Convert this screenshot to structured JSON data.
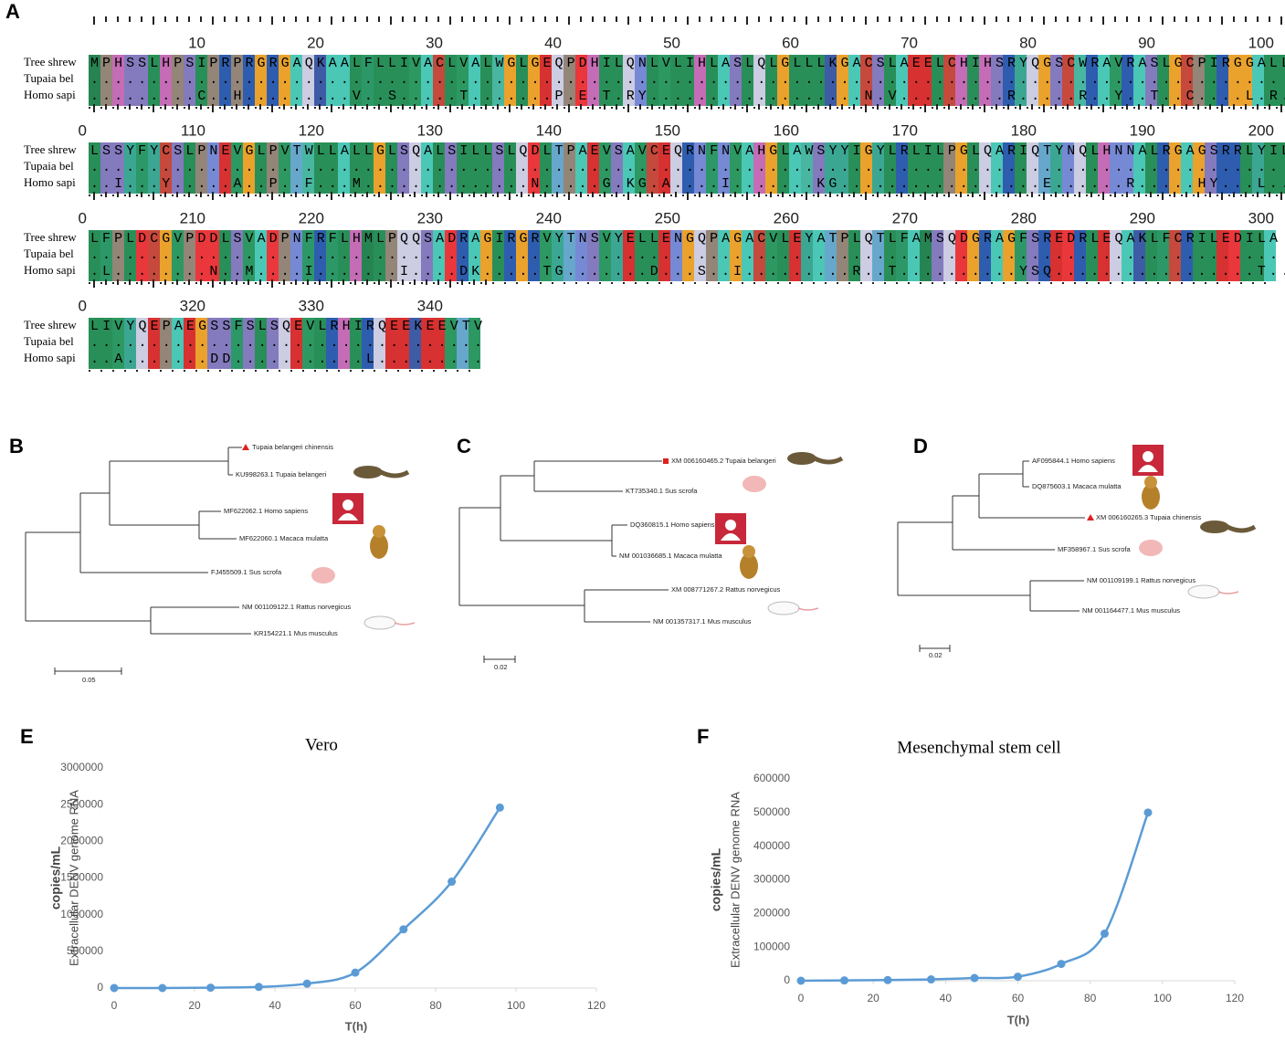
{
  "panels": {
    "A": {
      "label": "A",
      "blocks": [
        {
          "ruler": [
            "10",
            "20",
            "30",
            "40",
            "50",
            "60",
            "70",
            "80",
            "90",
            "100"
          ],
          "rows": [
            {
              "name": "Tree shrew",
              "seq": "MPHSSLHPSIPRPRGRGAQKAALFLLIVACLVALWGLGEQPDHILQNLVLIHLASLQLGLLLKGACSLAEELCHIHSRYQGSCWRAVRASLGCPIRGGALLL"
            },
            {
              "name": "Tupaia bel",
              "seq": "...................................................................................................."
            },
            {
              "name": "Homo sapi",
              "seq": ".........C..H.........V..S.....T.......P.E.T.RY..................N.V.........R.....R..Y..T..C....L.R..."
            }
          ]
        },
        {
          "ruler": [
            "0",
            "110",
            "120",
            "130",
            "140",
            "150",
            "160",
            "170",
            "180",
            "190",
            "200"
          ],
          "rows": [
            {
              "name": "Tree shrew",
              "seq": "LSSYFYCSLPNEVGLPVTWLLALLGLSQALSILLSLQDLTPAEVSAVCEQRNFNVAHGLAWSYYIGYLRLILPGLQARIQTYNQLHNNALRGAGSRRLYIL"
            },
            {
              "name": "Tupaia bel",
              "seq": "...................................................................................................."
            },
            {
              "name": "Homo sapi",
              "seq": "..I...Y.....A..P..F...M..............N.....G.KG.A....I.......KG.................E......R.....HY...L....V.Q."
            }
          ]
        },
        {
          "ruler": [
            "0",
            "210",
            "220",
            "230",
            "240",
            "250",
            "260",
            "270",
            "280",
            "290",
            "300"
          ],
          "rows": [
            {
              "name": "Tree shrew",
              "seq": "LFPLDCGVPDDLSVADPNFRFLHMLPQQSADRAGIRGRVYTNSVYELLENGQPAGACVLEYATPLQTLFAMSQDGRAGFSREDRLEQAKLFCRILEDILA"
            },
            {
              "name": "Tupaia bel",
              "seq": "...................................................................................................."
            },
            {
              "name": "Homo sapi",
              "seq": ".L........N..M....I.......I....DK.....TG.......D...S..I.........R..T..........YSQ.................T....T.."
            }
          ]
        },
        {
          "ruler": [
            "0",
            "320",
            "330",
            "340"
          ],
          "rows": [
            {
              "name": "Tree shrew",
              "seq": "LIVYQEPAEGSSFSLSQEVLRHIRQEEKEEVTV"
            },
            {
              "name": "Tupaia bel",
              "seq": "................................."
            },
            {
              "name": "Homo sapi",
              "seq": "..A.......DD...........L........."
            }
          ]
        }
      ]
    },
    "B": {
      "label": "B",
      "scale": "0.05",
      "leaves": [
        "Tupaia belangeri chinensis",
        "KU998263.1 Tupaia belangeri",
        "MF622062.1 Homo sapiens",
        "MF622060.1 Macaca mulatta",
        "FJ455509.1 Sus scrofa",
        "NM 001109122.1 Rattus norvegicus",
        "KR154221.1 Mus musculus"
      ]
    },
    "C": {
      "label": "C",
      "scale": "0.02",
      "leaves": [
        "XM 006160465.2 Tupaia belangeri",
        "KT735340.1 Sus scrofa",
        "DQ360815.1 Homo sapiens",
        "NM 001036685.1 Macaca mulatta",
        "XM 008771267.2 Rattus norvegicus",
        "NM 001357317.1 Mus musculus"
      ]
    },
    "D": {
      "label": "D",
      "scale": "0.02",
      "leaves": [
        "AF095844.1 Homo sapiens",
        "DQ875603.1 Macaca mulatta",
        "XM 006160265.3 Tupaia chinensis",
        "MF358967.1 Sus scrofa",
        "NM 001109199.1 Rattus norvegicus",
        "NM 001164477.1 Mus musculus"
      ]
    }
  },
  "chart_data": [
    {
      "type": "line",
      "panel_label": "E",
      "title": "Vero",
      "xlabel": "T(h)",
      "ylabel": "copies/mL",
      "ylabel_sub": "Extracellular DENV genome RNA",
      "x": [
        0,
        12,
        24,
        36,
        48,
        60,
        72,
        84,
        96
      ],
      "series": [
        {
          "color": "#5b9bd5",
          "values": [
            0,
            0,
            5000,
            15000,
            60000,
            210000,
            800000,
            1450000,
            2460000
          ]
        }
      ],
      "xlim": [
        0,
        120
      ],
      "xticks": [
        0,
        20,
        40,
        60,
        80,
        100,
        120
      ],
      "ylim": [
        0,
        3000000
      ],
      "yticks": [
        0,
        500000,
        1000000,
        1500000,
        2000000,
        2500000,
        3000000
      ]
    },
    {
      "type": "line",
      "panel_label": "F",
      "title": "Mesenchymal stem cell",
      "xlabel": "T(h)",
      "ylabel": "copies/mL",
      "ylabel_sub": "Extracellular DENV genome RNA",
      "x": [
        0,
        12,
        24,
        36,
        48,
        60,
        72,
        84,
        96
      ],
      "series": [
        {
          "color": "#5b9bd5",
          "values": [
            0,
            1000,
            2000,
            4000,
            8000,
            12000,
            50000,
            140000,
            500000
          ]
        }
      ],
      "xlim": [
        0,
        120
      ],
      "xticks": [
        0,
        20,
        40,
        60,
        80,
        100,
        120
      ],
      "ylim": [
        0,
        600000
      ],
      "yticks": [
        0,
        100000,
        200000,
        300000,
        400000,
        500000,
        600000
      ]
    }
  ]
}
